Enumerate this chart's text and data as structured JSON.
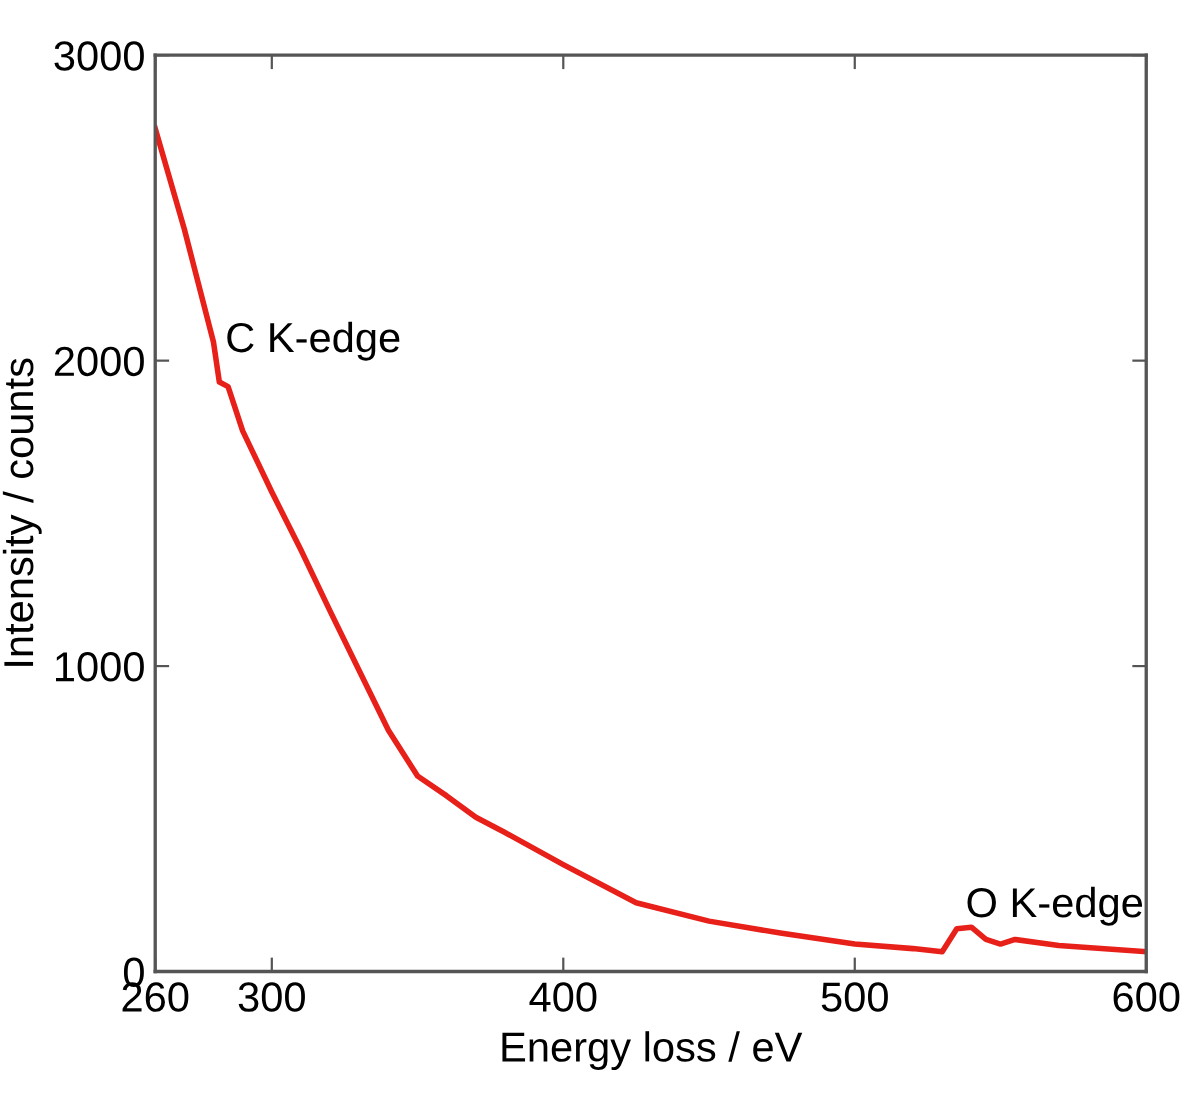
{
  "chart_data": {
    "type": "line",
    "xlabel": "Energy loss / eV",
    "ylabel": "Intensity / counts",
    "xlim": [
      260,
      600
    ],
    "xticks": [
      260,
      300,
      400,
      500,
      600
    ],
    "ylim": [
      0,
      3000
    ],
    "yticks": [
      0,
      1000,
      2000,
      3000
    ],
    "grid": false,
    "legend": false,
    "marker": "none",
    "line_style": "solid",
    "annotations": [
      {
        "text": "C K-edge",
        "x": 284,
        "y": 2000
      },
      {
        "text": "O K-edge",
        "x": 538,
        "y": 150
      }
    ],
    "series": [
      {
        "color": "#e8201a",
        "x": [
          260,
          270,
          280,
          282,
          285,
          290,
          300,
          310,
          320,
          330,
          340,
          350,
          360,
          370,
          380,
          400,
          425,
          450,
          475,
          500,
          520,
          530,
          535,
          540,
          545,
          550,
          555,
          570,
          600
        ],
        "values": [
          2760,
          2430,
          2060,
          1930,
          1915,
          1770,
          1570,
          1380,
          1180,
          985,
          790,
          640,
          575,
          505,
          455,
          350,
          225,
          165,
          125,
          90,
          75,
          65,
          140,
          145,
          105,
          90,
          105,
          85,
          65
        ]
      }
    ]
  }
}
